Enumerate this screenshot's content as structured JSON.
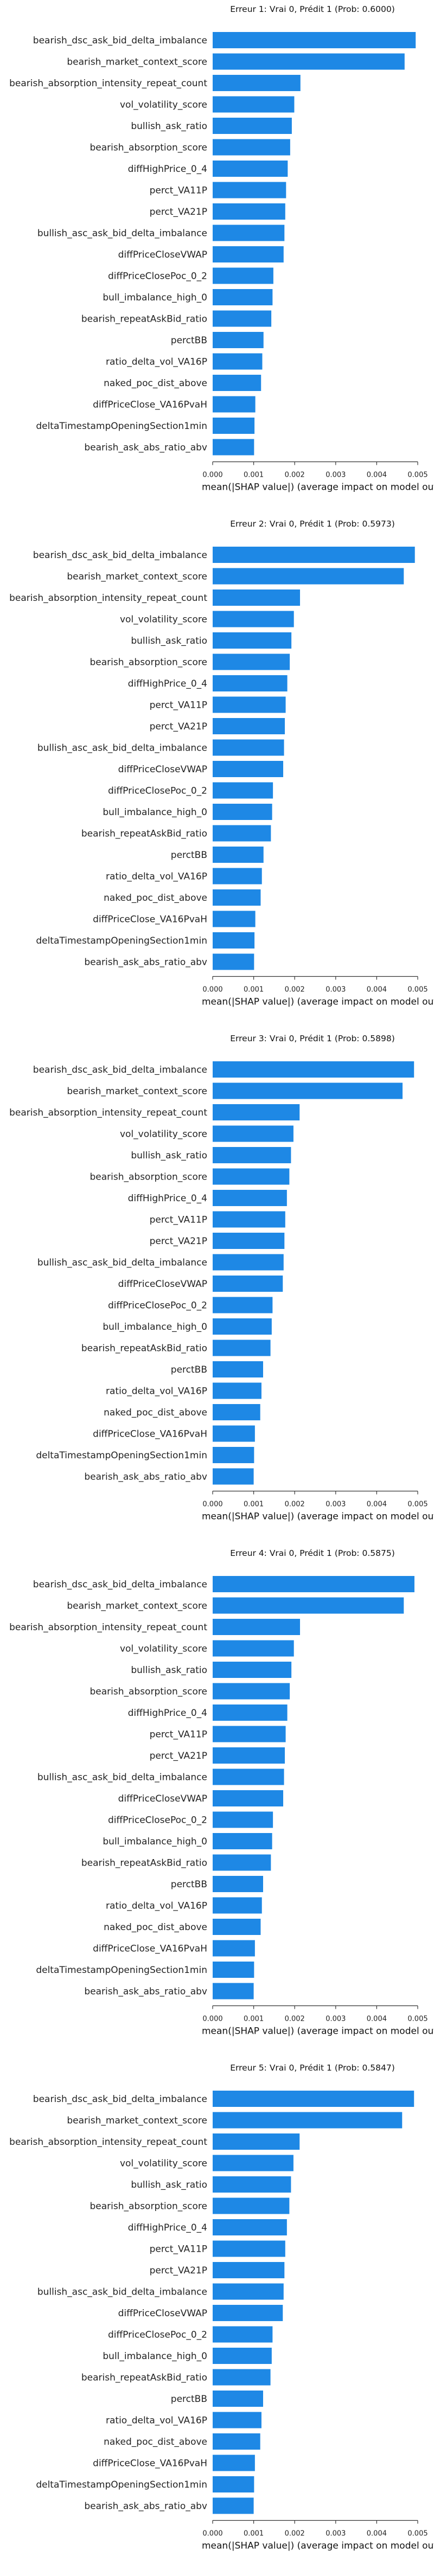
{
  "charts": [
    {
      "type": "bar",
      "orientation": "horizontal",
      "title": "Erreur 1: Vrai 0, Prédit 1 (Prob: 0.6000)",
      "xlabel": "mean(|SHAP value|) (average impact on model output magnitude)",
      "ylabel": "",
      "xlim": [
        0,
        0.005
      ],
      "xticks": [
        "0.000",
        "0.001",
        "0.002",
        "0.003",
        "0.004",
        "0.005"
      ],
      "bar_color": "#1E88E5",
      "grid": false,
      "categories": [
        "bearish_dsc_ask_bid_delta_imbalance",
        "bearish_market_context_score",
        "bearish_absorption_intensity_repeat_count",
        "vol_volatility_score",
        "bullish_ask_ratio",
        "bearish_absorption_score",
        "diffHighPrice_0_4",
        "perct_VA11P",
        "perct_VA21P",
        "bullish_asc_ask_bid_delta_imbalance",
        "diffPriceCloseVWAP",
        "diffPriceClosePoc_0_2",
        "bull_imbalance_high_0",
        "bearish_repeatAskBid_ratio",
        "perctBB",
        "ratio_delta_vol_VA16P",
        "naked_poc_dist_above",
        "diffPriceClose_VA16PvaH",
        "deltaTimestampOpeningSection1min",
        "bearish_ask_abs_ratio_abv"
      ],
      "values": [
        0.00495,
        0.00468,
        0.00214,
        0.00199,
        0.00193,
        0.00189,
        0.00183,
        0.00179,
        0.00177,
        0.00175,
        0.00173,
        0.00148,
        0.00146,
        0.00143,
        0.00124,
        0.00121,
        0.00118,
        0.00104,
        0.00102,
        0.00101
      ]
    },
    {
      "type": "bar",
      "orientation": "horizontal",
      "title": "Erreur 2: Vrai 0, Prédit 1 (Prob: 0.5973)",
      "xlabel": "mean(|SHAP value|) (average impact on model output magnitude)",
      "ylabel": "",
      "xlim": [
        0,
        0.005
      ],
      "xticks": [
        "0.000",
        "0.001",
        "0.002",
        "0.003",
        "0.004",
        "0.005"
      ],
      "bar_color": "#1E88E5",
      "grid": false,
      "categories": [
        "bearish_dsc_ask_bid_delta_imbalance",
        "bearish_market_context_score",
        "bearish_absorption_intensity_repeat_count",
        "vol_volatility_score",
        "bullish_ask_ratio",
        "bearish_absorption_score",
        "diffHighPrice_0_4",
        "perct_VA11P",
        "perct_VA21P",
        "bullish_asc_ask_bid_delta_imbalance",
        "diffPriceCloseVWAP",
        "diffPriceClosePoc_0_2",
        "bull_imbalance_high_0",
        "bearish_repeatAskBid_ratio",
        "perctBB",
        "ratio_delta_vol_VA16P",
        "naked_poc_dist_above",
        "diffPriceClose_VA16PvaH",
        "deltaTimestampOpeningSection1min",
        "bearish_ask_abs_ratio_abv"
      ],
      "values": [
        0.00493,
        0.00466,
        0.00213,
        0.00198,
        0.00192,
        0.00188,
        0.00182,
        0.00178,
        0.00176,
        0.00174,
        0.00172,
        0.00147,
        0.00145,
        0.00142,
        0.00124,
        0.0012,
        0.00117,
        0.00104,
        0.00102,
        0.00101
      ]
    },
    {
      "type": "bar",
      "orientation": "horizontal",
      "title": "Erreur 3: Vrai 0, Prédit 1 (Prob: 0.5898)",
      "xlabel": "mean(|SHAP value|) (average impact on model output magnitude)",
      "ylabel": "",
      "xlim": [
        0,
        0.005
      ],
      "xticks": [
        "0.000",
        "0.001",
        "0.002",
        "0.003",
        "0.004",
        "0.005"
      ],
      "bar_color": "#1E88E5",
      "grid": false,
      "categories": [
        "bearish_dsc_ask_bid_delta_imbalance",
        "bearish_market_context_score",
        "bearish_absorption_intensity_repeat_count",
        "vol_volatility_score",
        "bullish_ask_ratio",
        "bearish_absorption_score",
        "diffHighPrice_0_4",
        "perct_VA11P",
        "perct_VA21P",
        "bullish_asc_ask_bid_delta_imbalance",
        "diffPriceCloseVWAP",
        "diffPriceClosePoc_0_2",
        "bull_imbalance_high_0",
        "bearish_repeatAskBid_ratio",
        "perctBB",
        "ratio_delta_vol_VA16P",
        "naked_poc_dist_above",
        "diffPriceClose_VA16PvaH",
        "deltaTimestampOpeningSection1min",
        "bearish_ask_abs_ratio_abv"
      ],
      "values": [
        0.00491,
        0.00463,
        0.00212,
        0.00197,
        0.00191,
        0.00187,
        0.00181,
        0.00177,
        0.00175,
        0.00173,
        0.00171,
        0.00146,
        0.00144,
        0.00141,
        0.00123,
        0.00119,
        0.00116,
        0.00103,
        0.00101,
        0.001
      ]
    },
    {
      "type": "bar",
      "orientation": "horizontal",
      "title": "Erreur 4: Vrai 0, Prédit 1 (Prob: 0.5875)",
      "xlabel": "mean(|SHAP value|) (average impact on model output magnitude)",
      "ylabel": "",
      "xlim": [
        0,
        0.005
      ],
      "xticks": [
        "0.000",
        "0.001",
        "0.002",
        "0.003",
        "0.004",
        "0.005"
      ],
      "bar_color": "#1E88E5",
      "grid": false,
      "categories": [
        "bearish_dsc_ask_bid_delta_imbalance",
        "bearish_market_context_score",
        "bearish_absorption_intensity_repeat_count",
        "vol_volatility_score",
        "bullish_ask_ratio",
        "bearish_absorption_score",
        "diffHighPrice_0_4",
        "perct_VA11P",
        "perct_VA21P",
        "bullish_asc_ask_bid_delta_imbalance",
        "diffPriceCloseVWAP",
        "diffPriceClosePoc_0_2",
        "bull_imbalance_high_0",
        "bearish_repeatAskBid_ratio",
        "perctBB",
        "ratio_delta_vol_VA16P",
        "naked_poc_dist_above",
        "diffPriceClose_VA16PvaH",
        "deltaTimestampOpeningSection1min",
        "bearish_ask_abs_ratio_abv"
      ],
      "values": [
        0.00492,
        0.00466,
        0.00213,
        0.00198,
        0.00192,
        0.00188,
        0.00182,
        0.00178,
        0.00176,
        0.00174,
        0.00172,
        0.00147,
        0.00145,
        0.00142,
        0.00123,
        0.0012,
        0.00117,
        0.00103,
        0.00101,
        0.001
      ]
    },
    {
      "type": "bar",
      "orientation": "horizontal",
      "title": "Erreur 5: Vrai 0, Prédit 1 (Prob: 0.5847)",
      "xlabel": "mean(|SHAP value|) (average impact on model output magnitude)",
      "ylabel": "",
      "xlim": [
        0,
        0.005
      ],
      "xticks": [
        "0.000",
        "0.001",
        "0.002",
        "0.003",
        "0.004",
        "0.005"
      ],
      "bar_color": "#1E88E5",
      "grid": false,
      "categories": [
        "bearish_dsc_ask_bid_delta_imbalance",
        "bearish_market_context_score",
        "bearish_absorption_intensity_repeat_count",
        "vol_volatility_score",
        "bullish_ask_ratio",
        "bearish_absorption_score",
        "diffHighPrice_0_4",
        "perct_VA11P",
        "perct_VA21P",
        "bullish_asc_ask_bid_delta_imbalance",
        "diffPriceCloseVWAP",
        "diffPriceClosePoc_0_2",
        "bull_imbalance_high_0",
        "bearish_repeatAskBid_ratio",
        "perctBB",
        "ratio_delta_vol_VA16P",
        "naked_poc_dist_above",
        "diffPriceClose_VA16PvaH",
        "deltaTimestampOpeningSection1min",
        "bearish_ask_abs_ratio_abv"
      ],
      "values": [
        0.00491,
        0.00462,
        0.00212,
        0.00197,
        0.00191,
        0.00187,
        0.00181,
        0.00177,
        0.00175,
        0.00173,
        0.00171,
        0.00146,
        0.00144,
        0.00141,
        0.00123,
        0.00119,
        0.00116,
        0.00103,
        0.00101,
        0.001
      ]
    }
  ]
}
